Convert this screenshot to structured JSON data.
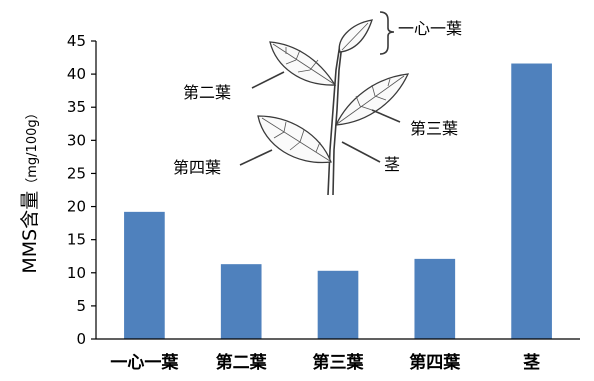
{
  "chart_data": {
    "type": "bar",
    "categories": [
      "一心一葉",
      "第二葉",
      "第三葉",
      "第四葉",
      "茎"
    ],
    "values": [
      19.2,
      11.3,
      10.3,
      12.1,
      41.6
    ],
    "ylabel": "MMS含量",
    "ylabel_unit": "（mg/100g）",
    "xlabel": "",
    "ylim": [
      0,
      45
    ],
    "yticks": [
      0,
      5,
      10,
      15,
      20,
      25,
      30,
      35,
      40,
      45
    ],
    "grid": false,
    "bar_color": "#4f81bd"
  },
  "illustration": {
    "labels": {
      "top": "一心一葉",
      "second": "第二葉",
      "third": "第三葉",
      "fourth": "第四葉",
      "stem": "茎"
    }
  }
}
